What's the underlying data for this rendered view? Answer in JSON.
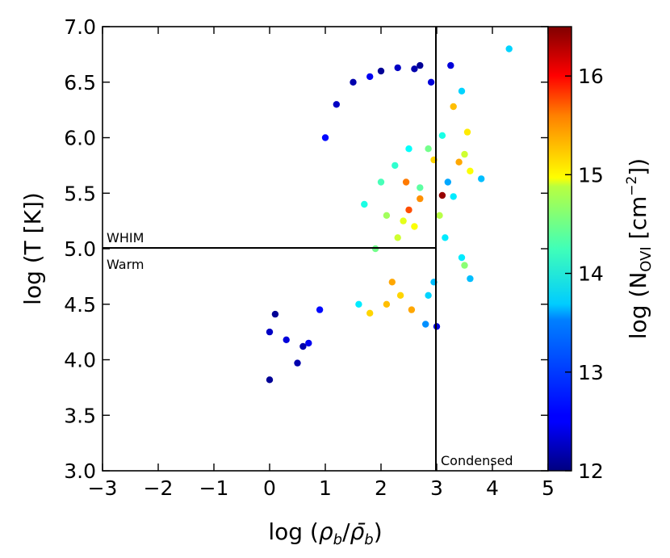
{
  "chart_data": {
    "type": "scatter",
    "title": "",
    "xlabel": "log (ρ_b/ρ̄_b)",
    "xlabel_parts": {
      "prefix": "log (",
      "rho": "ρ",
      "sub": "b",
      "slash": "/",
      "rho_bar": "ρ̄",
      "sub2": "b",
      "suffix": ")"
    },
    "ylabel": "log (T [K])",
    "colorbar_label": "log (N_OVI [cm^-2])",
    "colorbar_label_parts": {
      "prefix": "log (N",
      "sub": "OVI",
      "mid": " [cm",
      "sup": "−2",
      "suffix": "])"
    },
    "xlim": [
      -3,
      5
    ],
    "ylim": [
      3.0,
      7.0
    ],
    "clim": [
      12,
      16.5
    ],
    "x_ticks": [
      -3,
      -2,
      -1,
      0,
      1,
      2,
      3,
      4,
      5
    ],
    "x_tick_labels": [
      "−3",
      "−2",
      "−1",
      "0",
      "1",
      "2",
      "3",
      "4",
      "5"
    ],
    "y_ticks": [
      3.0,
      3.5,
      4.0,
      4.5,
      5.0,
      5.5,
      6.0,
      6.5,
      7.0
    ],
    "y_tick_labels": [
      "3.0",
      "3.5",
      "4.0",
      "4.5",
      "5.0",
      "5.5",
      "6.0",
      "6.5",
      "7.0"
    ],
    "colorbar_ticks": [
      12,
      13,
      14,
      15,
      16
    ],
    "colorbar_tick_labels": [
      "12",
      "13",
      "14",
      "15",
      "16"
    ],
    "colormap": "jet",
    "divider_lines": [
      {
        "orientation": "horizontal",
        "value": 5.0,
        "from_x": -3,
        "to_x": 3
      },
      {
        "orientation": "vertical",
        "value": 3.0,
        "from_y": 3.0,
        "to_y": 7.0
      }
    ],
    "annotations": [
      {
        "text": "WHIM",
        "region": "above log T = 5.0, left edge"
      },
      {
        "text": "Warm",
        "region": "below log T = 5.0, left edge"
      },
      {
        "text": "Condensed",
        "region": "right of log ρ = 3, bottom"
      }
    ],
    "points": [
      [
        0.0,
        3.82,
        12.1
      ],
      [
        0.5,
        3.97,
        12.2
      ],
      [
        0.0,
        4.25,
        12.3
      ],
      [
        0.1,
        4.41,
        12.1
      ],
      [
        0.3,
        4.18,
        12.4
      ],
      [
        0.7,
        4.15,
        12.5
      ],
      [
        0.6,
        4.12,
        12.2
      ],
      [
        0.9,
        4.45,
        12.6
      ],
      [
        4.3,
        6.8,
        13.5
      ],
      [
        3.25,
        6.65,
        12.4
      ],
      [
        3.45,
        6.42,
        13.5
      ],
      [
        3.3,
        6.28,
        15.1
      ],
      [
        3.1,
        6.02,
        13.8
      ],
      [
        3.55,
        6.05,
        14.9
      ],
      [
        3.5,
        5.85,
        14.6
      ],
      [
        3.4,
        5.78,
        15.2
      ],
      [
        3.8,
        5.63,
        13.4
      ],
      [
        3.6,
        5.7,
        14.8
      ],
      [
        3.2,
        5.6,
        13.3
      ],
      [
        3.1,
        5.48,
        16.4
      ],
      [
        3.05,
        5.3,
        14.5
      ],
      [
        3.3,
        5.47,
        13.6
      ],
      [
        3.15,
        5.1,
        13.6
      ],
      [
        3.45,
        4.92,
        13.6
      ],
      [
        3.6,
        4.73,
        13.4
      ],
      [
        3.5,
        4.85,
        14.3
      ],
      [
        3.0,
        4.3,
        12.4
      ],
      [
        2.8,
        4.32,
        13.2
      ],
      [
        2.7,
        6.65,
        12.1
      ],
      [
        2.6,
        6.62,
        12.2
      ],
      [
        2.3,
        6.63,
        12.3
      ],
      [
        2.0,
        6.6,
        12.1
      ],
      [
        1.8,
        6.55,
        12.5
      ],
      [
        1.5,
        6.5,
        12.2
      ],
      [
        1.2,
        6.3,
        12.3
      ],
      [
        1.0,
        6.0,
        12.6
      ],
      [
        2.9,
        6.5,
        12.4
      ],
      [
        2.85,
        5.9,
        14.2
      ],
      [
        2.95,
        5.8,
        15.0
      ],
      [
        2.7,
        5.45,
        15.3
      ],
      [
        2.5,
        5.35,
        15.6
      ],
      [
        2.4,
        5.25,
        14.7
      ],
      [
        2.6,
        5.2,
        14.8
      ],
      [
        2.2,
        4.7,
        15.2
      ],
      [
        2.35,
        4.58,
        15.0
      ],
      [
        2.55,
        4.45,
        15.2
      ],
      [
        2.1,
        4.5,
        15.1
      ],
      [
        1.8,
        4.42,
        15.0
      ],
      [
        2.85,
        4.58,
        13.5
      ],
      [
        2.95,
        4.7,
        13.4
      ],
      [
        2.7,
        5.55,
        14.1
      ],
      [
        2.45,
        5.6,
        15.4
      ],
      [
        1.6,
        4.5,
        13.6
      ],
      [
        1.9,
        5.0,
        14.2
      ],
      [
        2.1,
        5.3,
        14.4
      ],
      [
        2.3,
        5.1,
        14.6
      ],
      [
        1.7,
        5.4,
        13.8
      ],
      [
        2.0,
        5.6,
        14.0
      ],
      [
        2.25,
        5.75,
        13.9
      ],
      [
        2.5,
        5.9,
        13.7
      ]
    ]
  }
}
